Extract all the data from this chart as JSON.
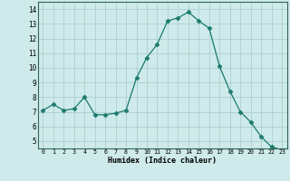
{
  "x": [
    0,
    1,
    2,
    3,
    4,
    5,
    6,
    7,
    8,
    9,
    10,
    11,
    12,
    13,
    14,
    15,
    16,
    17,
    18,
    19,
    20,
    21,
    22,
    23
  ],
  "y": [
    7.1,
    7.5,
    7.1,
    7.2,
    8.0,
    6.8,
    6.8,
    6.9,
    7.1,
    9.3,
    10.7,
    11.6,
    13.2,
    13.4,
    13.8,
    13.2,
    12.7,
    10.1,
    8.4,
    7.0,
    6.3,
    5.3,
    4.6,
    4.4
  ],
  "xlim": [
    -0.5,
    23.5
  ],
  "ylim": [
    4.5,
    14.5
  ],
  "yticks": [
    5,
    6,
    7,
    8,
    9,
    10,
    11,
    12,
    13,
    14
  ],
  "xticks": [
    0,
    1,
    2,
    3,
    4,
    5,
    6,
    7,
    8,
    9,
    10,
    11,
    12,
    13,
    14,
    15,
    16,
    17,
    18,
    19,
    20,
    21,
    22,
    23
  ],
  "xlabel": "Humidex (Indice chaleur)",
  "line_color": "#1a7a6e",
  "marker": "D",
  "marker_size": 2.5,
  "bg_color": "#ceeaea",
  "grid_color": "#aed0d0",
  "tick_color": "#336655"
}
